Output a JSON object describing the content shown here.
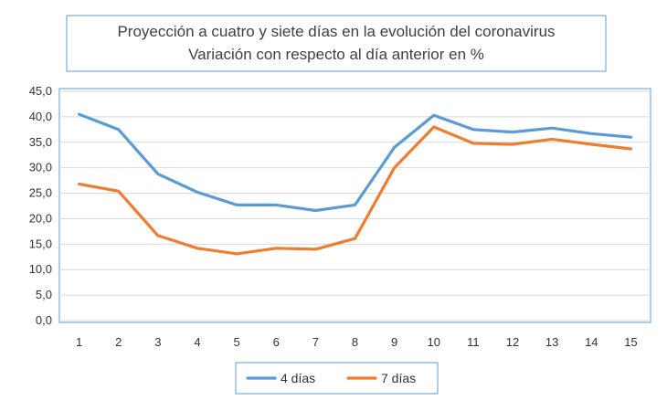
{
  "chart_data": {
    "type": "line",
    "title_lines": [
      "Proyección a cuatro y siete días en la evolución del coronavirus",
      "Variación con respecto al día anterior en %"
    ],
    "categories": [
      "1",
      "2",
      "3",
      "4",
      "5",
      "6",
      "7",
      "8",
      "9",
      "10",
      "11",
      "12",
      "13",
      "14",
      "15"
    ],
    "series": [
      {
        "name": "4 días",
        "color": "#5b9bd5",
        "values": [
          40.5,
          37.5,
          28.8,
          25.2,
          22.7,
          22.7,
          21.6,
          22.7,
          34.0,
          40.3,
          37.5,
          37.0,
          37.8,
          36.7,
          36.0
        ]
      },
      {
        "name": "7 días",
        "color": "#ed7d31",
        "values": [
          26.8,
          25.4,
          16.7,
          14.2,
          13.1,
          14.2,
          14.0,
          16.1,
          30.0,
          38.0,
          34.8,
          34.6,
          35.6,
          34.6,
          33.7
        ]
      }
    ],
    "ylim": [
      0,
      45
    ],
    "ytick_labels": [
      "0,0",
      "5,0",
      "10,0",
      "15,0",
      "20,0",
      "25,0",
      "30,0",
      "35,0",
      "40,0",
      "45,0"
    ],
    "grid": true,
    "legend_position": "bottom",
    "frame_color": "#5b9bd5"
  }
}
